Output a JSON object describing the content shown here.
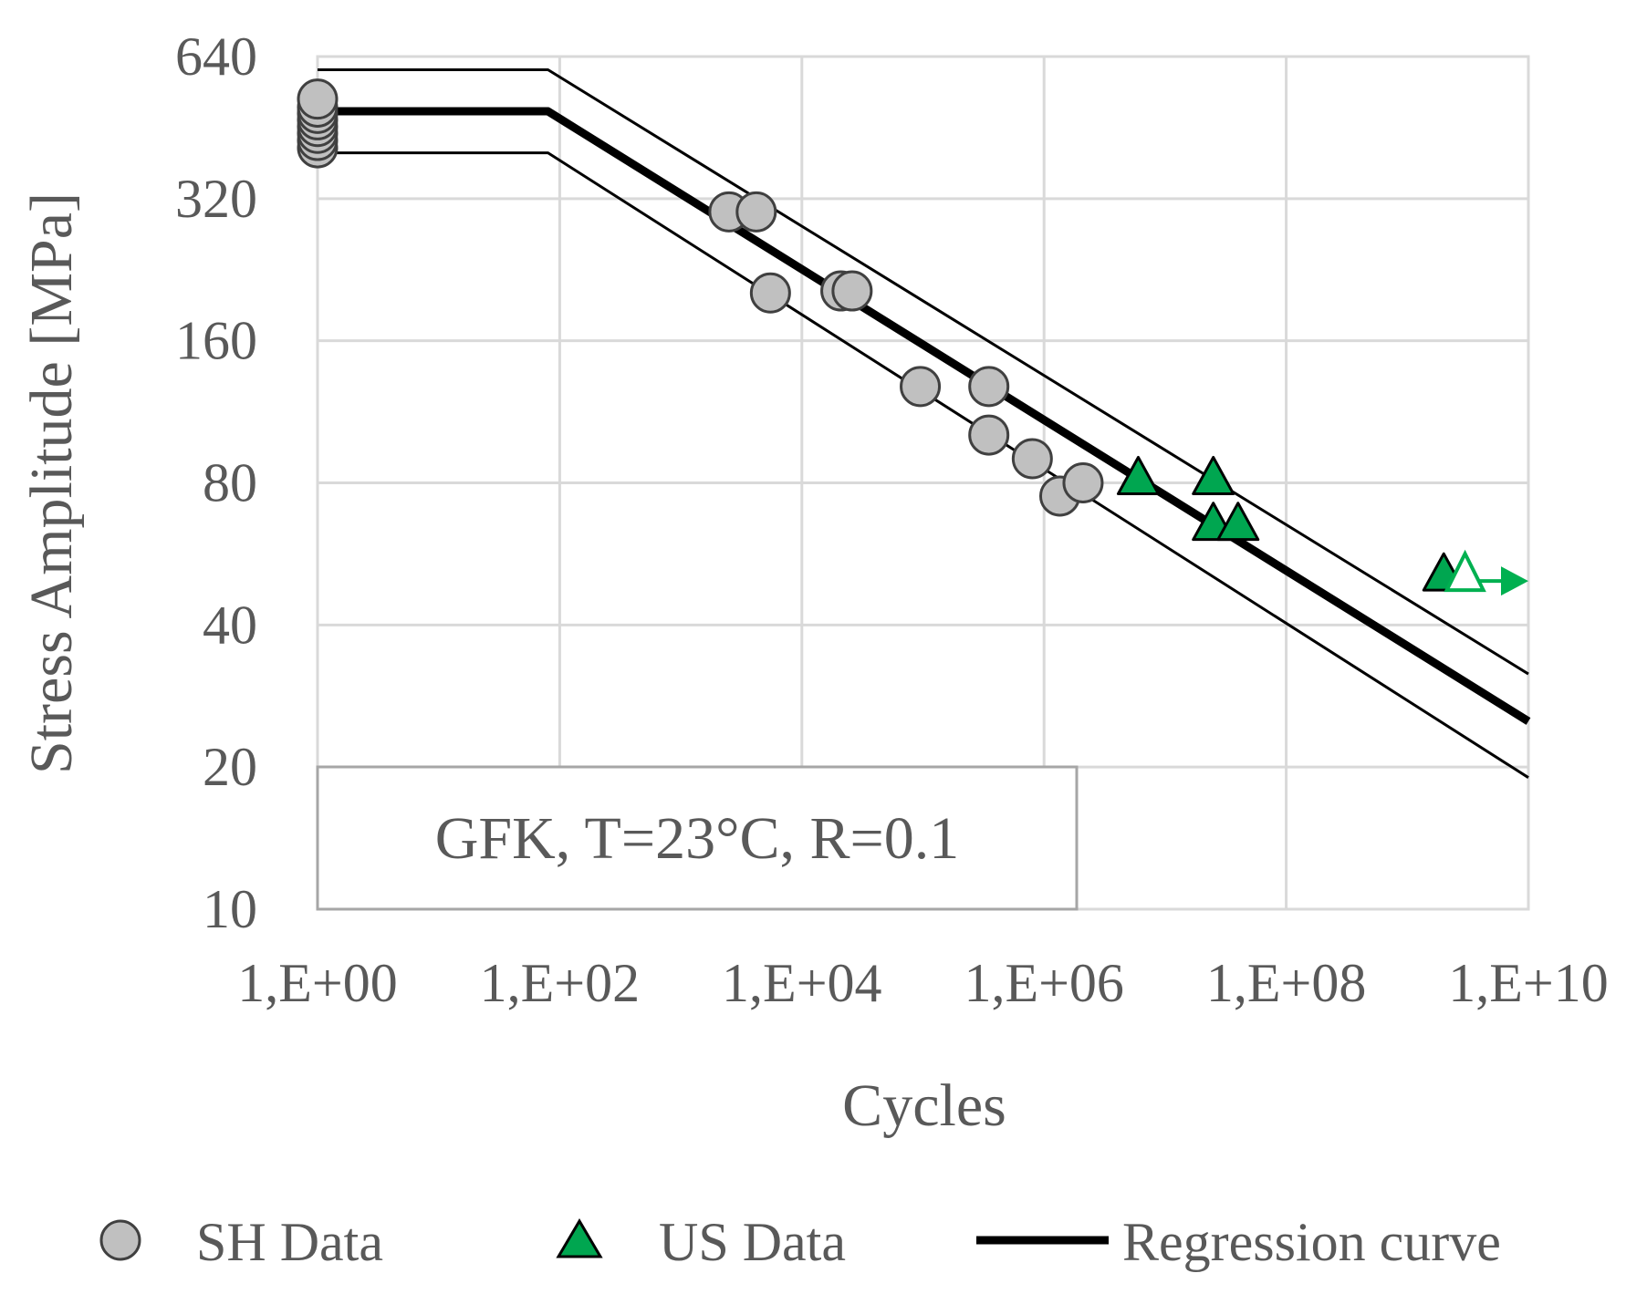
{
  "chart_data": {
    "type": "scatter",
    "title": "",
    "xlabel": "Cycles",
    "ylabel": "Stress Amplitude [MPa]",
    "x_scale": "log10",
    "y_scale": "log2",
    "xlim": [
      1,
      10000000000
    ],
    "ylim": [
      10,
      640
    ],
    "x_ticks": [
      1,
      100,
      10000,
      1000000,
      100000000,
      10000000000
    ],
    "x_tick_labels": [
      "1,E+00",
      "1,E+02",
      "1,E+04",
      "1,E+06",
      "1,E+08",
      "1,E+10"
    ],
    "y_ticks": [
      10,
      20,
      40,
      80,
      160,
      320,
      640
    ],
    "y_tick_labels": [
      "10",
      "20",
      "40",
      "80",
      "160",
      "320",
      "640"
    ],
    "grid": true,
    "annotation": "GFK, T=23°C, R=0.1",
    "legend_position": "bottom",
    "colors": {
      "sh_fill": "#c0c0c0",
      "us_fill": "#00a650",
      "us_runout": "#00b050",
      "curve": "#000000",
      "grid": "#d9d9d9",
      "text": "#595959"
    },
    "series": [
      {
        "name": "SH Data",
        "marker": "circle",
        "points": [
          {
            "x": 1,
            "y": 410
          },
          {
            "x": 1,
            "y": 425
          },
          {
            "x": 1,
            "y": 440
          },
          {
            "x": 1,
            "y": 455
          },
          {
            "x": 1,
            "y": 470
          },
          {
            "x": 1,
            "y": 485
          },
          {
            "x": 1,
            "y": 500
          },
          {
            "x": 1,
            "y": 520
          },
          {
            "x": 2500,
            "y": 300
          },
          {
            "x": 4200,
            "y": 300
          },
          {
            "x": 5500,
            "y": 202
          },
          {
            "x": 21000,
            "y": 204
          },
          {
            "x": 26000,
            "y": 204
          },
          {
            "x": 95000,
            "y": 128
          },
          {
            "x": 350000,
            "y": 128
          },
          {
            "x": 350000,
            "y": 101
          },
          {
            "x": 800000,
            "y": 90
          },
          {
            "x": 1350000,
            "y": 75
          },
          {
            "x": 2100000,
            "y": 80
          }
        ]
      },
      {
        "name": "US Data",
        "marker": "triangle",
        "points": [
          {
            "x": 6000000,
            "y": 80
          },
          {
            "x": 25000000,
            "y": 80
          },
          {
            "x": 25000000,
            "y": 64
          },
          {
            "x": 40000000,
            "y": 64
          },
          {
            "x": 2000000000,
            "y": 50
          }
        ]
      },
      {
        "name": "US runout",
        "marker": "open-triangle-arrow",
        "points": [
          {
            "x": 3000000000,
            "y": 50,
            "to_x": 10000000000
          }
        ]
      },
      {
        "name": "Regression curve",
        "type": "line",
        "points": [
          {
            "x": 1,
            "y": 490
          },
          {
            "x": 80,
            "y": 490
          },
          {
            "x": 10000000000,
            "y": 25
          }
        ]
      },
      {
        "name": "Upper band",
        "type": "line",
        "points": [
          {
            "x": 1,
            "y": 600
          },
          {
            "x": 80,
            "y": 600
          },
          {
            "x": 10000000000,
            "y": 31.5
          }
        ]
      },
      {
        "name": "Lower band",
        "type": "line",
        "points": [
          {
            "x": 1,
            "y": 400
          },
          {
            "x": 80,
            "y": 400
          },
          {
            "x": 10000000000,
            "y": 19
          }
        ]
      }
    ],
    "legend": [
      {
        "label": "SH Data",
        "marker": "circle"
      },
      {
        "label": "US Data",
        "marker": "triangle"
      },
      {
        "label": "Regression curve",
        "marker": "line"
      }
    ]
  }
}
